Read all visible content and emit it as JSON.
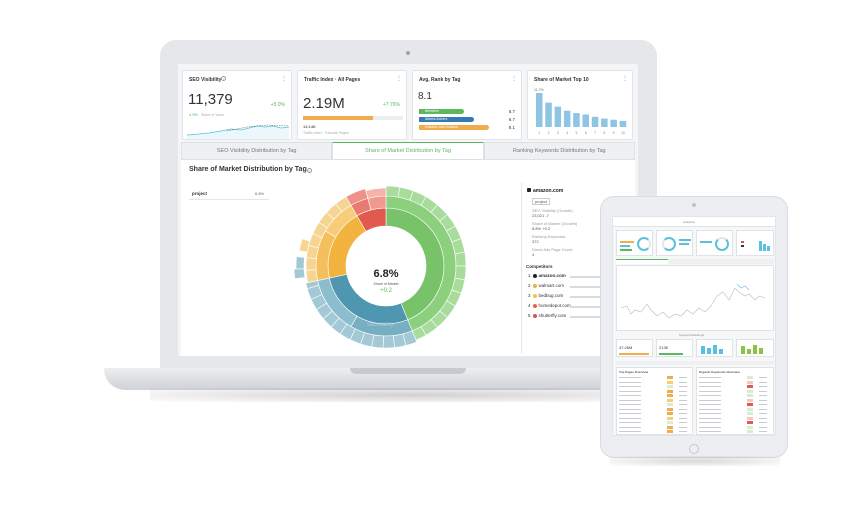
{
  "laptop": {
    "widgets": {
      "seo_visibility": {
        "title": "SEO Visibility",
        "value": "11,379",
        "change": "+5.0%",
        "sub_value": "4.5%",
        "sub_label": "Share of Voice"
      },
      "traffic_index": {
        "title": "Traffic Index · All Pages",
        "value": "2.19M",
        "change": "+7.76%",
        "sub_value": "13.14K",
        "sub_label": "Traffic Index · Favorite Pages",
        "bar_fill": 0.7
      },
      "avg_rank": {
        "title": "Avg. Rank by Tag",
        "value": "8.1",
        "rows": [
          {
            "label": "Blenders",
            "value": "5.7",
            "color": "#5cb85c",
            "fill": 0.45
          },
          {
            "label": "Mixers/Juicers",
            "value": "6.7",
            "color": "#337ab7",
            "fill": 0.55
          },
          {
            "label": "Outdoor and Outdoor",
            "value": "8.1",
            "color": "#f0ad4e",
            "fill": 0.7
          }
        ]
      },
      "share_top10": {
        "title": "Share of Market Top 10",
        "ymax_label": "11.7%",
        "values": [
          11.7,
          8.4,
          7.0,
          5.6,
          4.8,
          4.3,
          3.5,
          2.9,
          2.5,
          2.1
        ],
        "x_labels": [
          "1",
          "2",
          "3",
          "4",
          "5",
          "6",
          "7",
          "8",
          "9",
          "10"
        ]
      }
    },
    "tabs": [
      {
        "label": "SEO Visibility Distribution by Tag",
        "active": false
      },
      {
        "label": "Share of Market Distribution by Tag",
        "active": true
      },
      {
        "label": "Ranking Keywords Distribution by Tag",
        "active": false
      }
    ],
    "panel": {
      "title": "Share of Market Distribution by Tag",
      "filter_name": "project",
      "filter_value": "6.8%",
      "center_value": "6.8%",
      "center_label": "Share of Market",
      "center_change": "+0.2",
      "watermark": "seoClarity",
      "chart_data": {
        "type": "sunburst",
        "inner_ring": [
          {
            "name": "project",
            "value": 6.8,
            "color": "#78c26a"
          }
        ]
      }
    },
    "details": {
      "domain": "amazon.com",
      "tag": "project",
      "seo_visibility_label": "SEO Visibility (Growth)",
      "seo_visibility_value": "23,021 -7",
      "share_label": "Share of Market (Growth)",
      "share_value": "6.8% +0.2",
      "ranking_label": "Ranking Keywords",
      "ranking_value": "372",
      "serp_label": "Direct Ads Page Count",
      "serp_value": "4",
      "competitors_label": "Competitors",
      "share_of_market_label": "Share of M",
      "competitors": [
        {
          "rank": "1",
          "name": "amazon.com",
          "color": "#222222"
        },
        {
          "rank": "2",
          "name": "walmart.com",
          "color": "#f0ad4e"
        },
        {
          "rank": "3",
          "name": "bedbug.com",
          "color": "#f5c242"
        },
        {
          "rank": "4",
          "name": "homedepot.com",
          "color": "#e8613c"
        },
        {
          "rank": "5",
          "name": "shutterfly.com",
          "color": "#d9534f"
        }
      ]
    }
  },
  "tablet": {
    "header": "Analytics",
    "keyword_rankings": "Keyword Rankings",
    "value_a": "47.26M",
    "value_b": "213K",
    "table_left_title": "Top Pages Overview",
    "table_right_title": "Organic Keywords Overview"
  }
}
